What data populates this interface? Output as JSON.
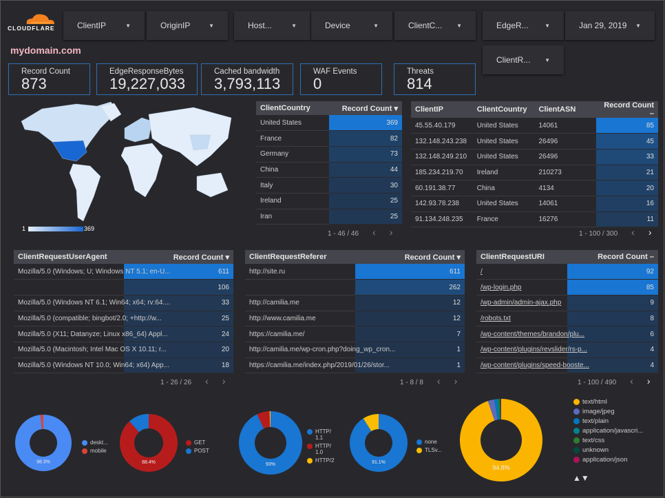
{
  "header": {
    "logo_text": "CLOUDFLARE",
    "site": "mydomain.com",
    "filters": [
      "ClientIP",
      "OriginIP",
      "Host...",
      "Device",
      "ClientC...",
      "EdgeR...",
      "Jan 29, 2019",
      "ClientR..."
    ]
  },
  "kpis": [
    {
      "label": "Record Count",
      "value": "873"
    },
    {
      "label": "EdgeResponseBytes",
      "value": "19,227,033"
    },
    {
      "label": "Cached bandwidth",
      "value": "3,793,113"
    },
    {
      "label": "WAF Events",
      "value": "0"
    },
    {
      "label": "Threats",
      "value": "814"
    }
  ],
  "map": {
    "legend_min": "1",
    "legend_max": "369"
  },
  "colors": {
    "heat_max": "#1976d2",
    "heat_min": "#22344c",
    "kpi_border": "#2f6fb3",
    "site": "#f4b6c2"
  },
  "tables": [
    {
      "headers": [
        "ClientCountry",
        "Record Count ▾"
      ],
      "rows": [
        [
          "United States",
          369
        ],
        [
          "France",
          82
        ],
        [
          "Germany",
          73
        ],
        [
          "China",
          44
        ],
        [
          "Italy",
          30
        ],
        [
          "Ireland",
          25
        ],
        [
          "Iran",
          25
        ]
      ],
      "pagination": "1 - 46 / 46"
    },
    {
      "headers": [
        "ClientIP",
        "ClientCountry",
        "ClientASN",
        "Record Count –"
      ],
      "rows": [
        [
          "45.55.40.179",
          "United States",
          "14061",
          85
        ],
        [
          "132.148.243.238",
          "United States",
          "26496",
          45
        ],
        [
          "132.148.249.210",
          "United States",
          "26496",
          33
        ],
        [
          "185.234.219.70",
          "Ireland",
          "210273",
          21
        ],
        [
          "60.191.38.77",
          "China",
          "4134",
          20
        ],
        [
          "142.93.78.238",
          "United States",
          "14061",
          16
        ],
        [
          "91.134.248.235",
          "France",
          "16276",
          11
        ]
      ],
      "pagination": "1 - 100 / 300"
    },
    {
      "headers": [
        "ClientRequestUserAgent",
        "Record Count ▾"
      ],
      "rows": [
        [
          "Mozilla/5.0 (Windows; U; Windows NT 5.1; en-U...",
          611
        ],
        [
          "",
          106
        ],
        [
          "Mozilla/5.0 (Windows NT 6.1; Win64; x64; rv:64....",
          33
        ],
        [
          "Mozilla/5.0 (compatible; bingbot/2.0; +http://w...",
          25
        ],
        [
          "Mozilla/5.0 (X11; Datanyze; Linux x86_64) Appl...",
          24
        ],
        [
          "Mozilla/5.0 (Macintosh; Intel Mac OS X 10.11; r...",
          20
        ],
        [
          "Mozilla/5.0 (Windows NT 10.0; Win64; x64) App...",
          18
        ]
      ],
      "pagination": "1 - 26 / 26"
    },
    {
      "headers": [
        "ClientRequestReferer",
        "Record Count ▾"
      ],
      "rows": [
        [
          "http://site.ru",
          611
        ],
        [
          "",
          262
        ],
        [
          "http://camilia.me",
          12
        ],
        [
          "http://www.camilia.me",
          12
        ],
        [
          "https://camilia.me/",
          7
        ],
        [
          "http://camilia.me/wp-cron.php?doing_wp_cron...",
          1
        ],
        [
          "https://camilia.me/index.php/2019/01/26/stor...",
          1
        ]
      ],
      "pagination": "1 - 8 / 8"
    },
    {
      "headers": [
        "ClientRequestURI",
        "Record Count –"
      ],
      "rows": [
        [
          "/",
          92
        ],
        [
          "/wp-login.php",
          85
        ],
        [
          "/wp-admin/admin-ajax.php",
          9
        ],
        [
          "/robots.txt",
          8
        ],
        [
          "/wp-content/themes/brandon/plu...",
          6
        ],
        [
          "/wp-content/plugins/revslider/rs-p...",
          4
        ],
        [
          "/wp-content/plugins/speed-booste...",
          4
        ]
      ],
      "pagination": "1 - 100 / 490",
      "links": true
    }
  ],
  "donuts": [
    {
      "label": "98.3%",
      "slices": [
        {
          "name": "deskt...",
          "value": 98.3,
          "color": "#4a8af4"
        },
        {
          "name": "mobile",
          "value": 1.7,
          "color": "#db4437"
        }
      ]
    },
    {
      "label": "88.4%",
      "slices": [
        {
          "name": "GET",
          "value": 88.4,
          "color": "#b71c1c"
        },
        {
          "name": "POST",
          "value": 11.6,
          "color": "#1976d2"
        }
      ]
    },
    {
      "label": "93%",
      "slices": [
        {
          "name": "HTTP/ 1.1",
          "value": 93,
          "color": "#1976d2"
        },
        {
          "name": "HTTP/ 1.0",
          "value": 6.5,
          "color": "#b71c1c"
        },
        {
          "name": "HTTP/2",
          "value": 0.5,
          "color": "#fbbc04"
        }
      ]
    },
    {
      "label": "91.1%",
      "slices": [
        {
          "name": "none",
          "value": 91.1,
          "color": "#1976d2"
        },
        {
          "name": "TLSv...",
          "value": 8.9,
          "color": "#fbbc04"
        }
      ]
    },
    {
      "label": "94.8%",
      "slices": [
        {
          "name": "text/html",
          "value": 94.8,
          "color": "#fbb400"
        },
        {
          "name": "image/jpeg",
          "value": 2.5,
          "color": "#5c6bc0"
        },
        {
          "name": "text/plain",
          "value": 1.0,
          "color": "#0277bd"
        },
        {
          "name": "application/javascri...",
          "value": 0.7,
          "color": "#00838f"
        },
        {
          "name": "text/css",
          "value": 0.5,
          "color": "#2e7d32"
        },
        {
          "name": "unknown",
          "value": 0.3,
          "color": "#004d40"
        },
        {
          "name": "application/json",
          "value": 0.2,
          "color": "#ad1457"
        }
      ]
    }
  ],
  "legend_pager": "▲▼"
}
